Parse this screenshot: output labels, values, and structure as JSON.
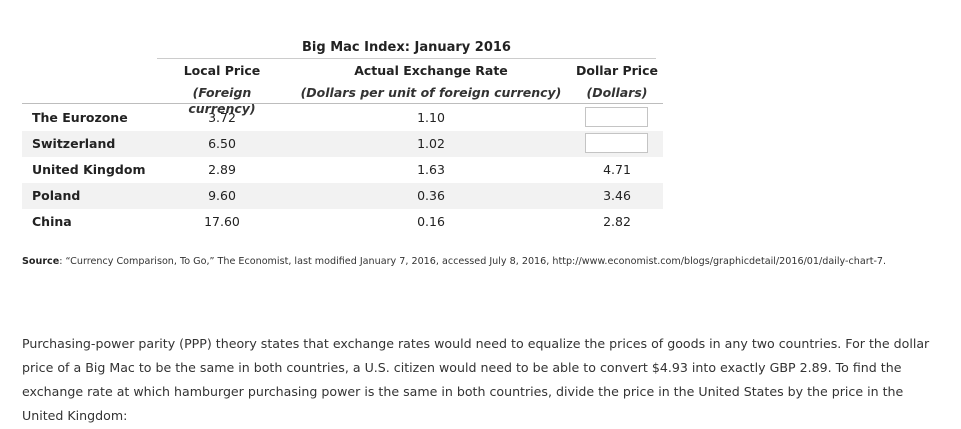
{
  "table": {
    "title": "Big Mac Index: January 2016",
    "headers": [
      "Local Price",
      "Actual Exchange Rate",
      "Dollar Price"
    ],
    "subheaders": [
      "(Foreign currency)",
      "(Dollars per unit of foreign currency)",
      "(Dollars)"
    ],
    "rows": [
      {
        "country": "The Eurozone",
        "local_price": "3.72",
        "exchange_rate": "1.10",
        "dollar_price": ""
      },
      {
        "country": "Switzerland",
        "local_price": "6.50",
        "exchange_rate": "1.02",
        "dollar_price": ""
      },
      {
        "country": "United Kingdom",
        "local_price": "2.89",
        "exchange_rate": "1.63",
        "dollar_price": "4.71"
      },
      {
        "country": "Poland",
        "local_price": "9.60",
        "exchange_rate": "0.36",
        "dollar_price": "3.46"
      },
      {
        "country": "China",
        "local_price": "17.60",
        "exchange_rate": "0.16",
        "dollar_price": "2.82"
      }
    ]
  },
  "source": {
    "label": "Source",
    "text": ": “Currency Comparison, To Go,” The Economist, last modified January 7, 2016, accessed July 8, 2016, http://www.economist.com/blogs/graphicdetail/2016/01/daily-chart-7."
  },
  "paragraph": "Purchasing-power parity (PPP) theory states that exchange rates would need to equalize the prices of goods in any two countries. For the dollar price of a Big Mac to be the same in both countries, a U.S. citizen would need to be able to convert $4.93 into exactly GBP 2.89. To find the exchange rate at which hamburger purchasing power is the same in both countries, divide the price in the United States by the price in the United Kingdom:"
}
